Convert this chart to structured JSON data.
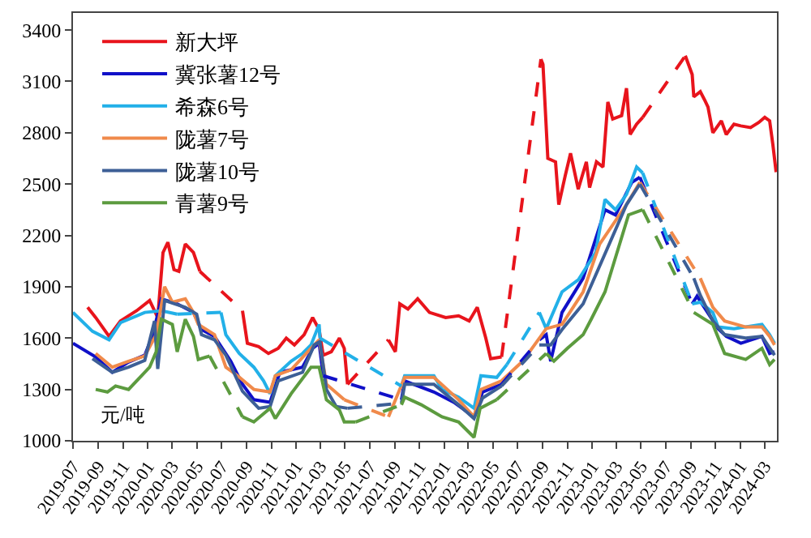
{
  "chart_data": {
    "type": "line",
    "annotations": [
      "元/吨"
    ],
    "xlim": [
      "2019-07-01",
      "2024-04-01"
    ],
    "ylim": [
      1000,
      3500
    ],
    "xticks": [
      "2019-07",
      "2019-09",
      "2019-11",
      "2020-01",
      "2020-03",
      "2020-05",
      "2020-07",
      "2020-09",
      "2020-11",
      "2021-01",
      "2021-03",
      "2021-05",
      "2021-07",
      "2021-09",
      "2021-11",
      "2022-01",
      "2022-03",
      "2022-05",
      "2022-07",
      "2022-09",
      "2022-11",
      "2023-01",
      "2023-03",
      "2023-05",
      "2023-07",
      "2023-09",
      "2023-11",
      "2024-01",
      "2024-03"
    ],
    "yticks": [
      1000,
      1300,
      1600,
      1900,
      2200,
      2500,
      2800,
      3100,
      3400
    ],
    "legend": "top left",
    "series": [
      {
        "name": "新大坪",
        "color": "#e8141c",
        "x": [
          "2019-08-06",
          "2019-08-26",
          "2019-09-28",
          "2019-10-26",
          "2019-12-05",
          "2020-01-06",
          "2020-01-26",
          "2020-02-08",
          "2020-02-20",
          "2020-03-06",
          "2020-03-18",
          "2020-04-03",
          "2020-04-23",
          "2020-05-09",
          "2020-07-01",
          "2020-08-22",
          "2020-09-03",
          "2020-10-01",
          "2020-10-25",
          "2020-11-18",
          "2020-12-08",
          "2020-12-28",
          "2021-01-21",
          "2021-02-11",
          "2021-02-27",
          "2021-03-09",
          "2021-03-29",
          "2021-04-18",
          "2021-04-30",
          "2021-05-08",
          "2021-07-01",
          "2021-08-17",
          "2021-09-03",
          "2021-09-14",
          "2021-10-04",
          "2021-10-28",
          "2021-11-26",
          "2022-01-05",
          "2022-02-06",
          "2022-03-04",
          "2022-03-24",
          "2022-04-14",
          "2022-04-26",
          "2022-05-23",
          "2022-07-01",
          "2022-08-28",
          "2022-09-02",
          "2022-09-14",
          "2022-10-03",
          "2022-10-11",
          "2022-10-27",
          "2022-11-09",
          "2022-11-28",
          "2022-12-18",
          "2022-12-26",
          "2023-01-12",
          "2023-01-28",
          "2023-02-09",
          "2023-02-21",
          "2023-03-15",
          "2023-03-27",
          "2023-04-05",
          "2023-04-21",
          "2023-05-06",
          "2023-07-01",
          "2023-08-19",
          "2023-09-05",
          "2023-09-09",
          "2023-09-25",
          "2023-10-06",
          "2023-10-14",
          "2023-10-26",
          "2023-11-16",
          "2023-11-28",
          "2023-12-17",
          "2024-01-03",
          "2024-01-27",
          "2024-02-16",
          "2024-03-02",
          "2024-03-14",
          "2024-03-22",
          "2024-03-30"
        ],
        "values": [
          1780,
          1720,
          1610,
          1700,
          1760,
          1820,
          1720,
          2100,
          2160,
          2000,
          1990,
          2150,
          2100,
          1990,
          null,
          1760,
          1570,
          1550,
          1510,
          1540,
          1600,
          1560,
          1620,
          1720,
          1650,
          1500,
          1520,
          1600,
          1540,
          1330,
          null,
          1590,
          1520,
          1800,
          1770,
          1830,
          1750,
          1720,
          1730,
          1700,
          1780,
          1600,
          1480,
          1490,
          null,
          3230,
          3200,
          2650,
          2630,
          2380,
          2550,
          2680,
          2470,
          2630,
          2480,
          2630,
          2600,
          2980,
          2880,
          2900,
          3060,
          2790,
          2850,
          2890,
          null,
          3250,
          3140,
          3010,
          3040,
          2990,
          2950,
          2800,
          2870,
          2790,
          2850,
          2840,
          2830,
          2860,
          2890,
          2870,
          2730,
          2570
        ]
      },
      {
        "name": "冀张薯12号",
        "color": "#1010c8",
        "x": [
          "2019-07-01",
          "2019-08-26",
          "2019-10-06",
          "2019-11-15",
          "2019-12-25",
          "2020-01-14",
          "2020-02-04",
          "2020-03-14",
          "2020-04-23",
          "2020-05-13",
          "2020-06-14",
          "2020-07-24",
          "2020-08-22",
          "2020-09-19",
          "2020-10-29",
          "2020-11-22",
          "2021-01-17",
          "2021-02-11",
          "2021-02-27",
          "2021-03-09",
          "2021-06-01",
          "2021-09-18",
          "2021-09-26",
          "2021-12-07",
          "2022-01-25",
          "2022-03-16",
          "2022-04-06",
          "2022-05-23",
          "2022-07-01",
          "2022-08-24",
          "2022-09-10",
          "2022-09-21",
          "2022-10-19",
          "2022-12-10",
          "2023-02-02",
          "2023-02-28",
          "2023-04-09",
          "2023-04-29",
          "2023-07-01",
          "2023-09-05",
          "2023-09-17",
          "2023-11-08",
          "2023-11-28",
          "2024-01-03",
          "2024-02-24",
          "2024-03-14",
          "2024-03-26"
        ],
        "values": [
          1570,
          1490,
          1400,
          1460,
          1500,
          1620,
          1830,
          1800,
          1750,
          1650,
          1610,
          1465,
          1330,
          1240,
          1225,
          1400,
          1430,
          1540,
          1570,
          1380,
          null,
          1240,
          1350,
          1285,
          1225,
          1140,
          1285,
          1330,
          null,
          1590,
          1620,
          1465,
          1750,
          1950,
          2350,
          2320,
          2510,
          2540,
          null,
          1800,
          1845,
          1655,
          1610,
          1570,
          1610,
          1510,
          1520
        ]
      },
      {
        "name": "希森6号",
        "color": "#22b0e8",
        "x": [
          "2019-07-01",
          "2019-08-18",
          "2019-09-28",
          "2019-10-26",
          "2019-12-05",
          "2019-12-25",
          "2020-02-04",
          "2020-03-14",
          "2020-05-01",
          "2020-06-30",
          "2020-07-12",
          "2020-08-14",
          "2020-09-19",
          "2020-10-13",
          "2020-10-29",
          "2020-11-11",
          "2020-12-20",
          "2021-01-17",
          "2021-02-07",
          "2021-02-27",
          "2021-03-01",
          "2021-06-01",
          "2021-09-18",
          "2021-09-26",
          "2021-12-07",
          "2021-12-27",
          "2022-02-06",
          "2022-03-16",
          "2022-04-02",
          "2022-05-11",
          "2022-06-05",
          "2022-07-15",
          "2022-08-24",
          "2022-09-10",
          "2022-10-19",
          "2022-11-28",
          "2023-01-10",
          "2023-02-02",
          "2023-02-28",
          "2023-03-27",
          "2023-04-21",
          "2023-05-06",
          "2023-07-01",
          "2023-09-05",
          "2023-09-25",
          "2023-10-26",
          "2023-11-08",
          "2023-12-17",
          "2024-02-24",
          "2024-03-14",
          "2024-03-26"
        ],
        "values": [
          1750,
          1640,
          1590,
          1690,
          1730,
          1750,
          1760,
          1740,
          null,
          1750,
          1620,
          1510,
          1430,
          1350,
          1275,
          1380,
          1465,
          1510,
          1560,
          1680,
          1600,
          null,
          1320,
          1380,
          1380,
          1300,
          1255,
          1190,
          1380,
          1370,
          1445,
          null,
          1750,
          1655,
          1870,
          1940,
          2100,
          2410,
          2350,
          2440,
          2600,
          2565,
          null,
          1800,
          1810,
          1750,
          1665,
          1655,
          1680,
          1620,
          1570
        ]
      },
      {
        "name": "陇薯7号",
        "color": "#f08a4b",
        "x": [
          "2019-08-26",
          "2019-10-06",
          "2019-11-15",
          "2019-12-25",
          "2020-01-22",
          "2020-02-12",
          "2020-03-02",
          "2020-04-03",
          "2020-04-23",
          "2020-05-05",
          "2020-06-14",
          "2020-07-12",
          "2020-08-10",
          "2020-09-19",
          "2020-10-29",
          "2020-11-11",
          "2020-12-20",
          "2021-02-07",
          "2021-02-27",
          "2021-03-17",
          "2021-04-30",
          "2021-06-15",
          "2021-08-17",
          "2021-09-26",
          "2021-12-07",
          "2022-02-06",
          "2022-03-16",
          "2022-04-02",
          "2022-05-23",
          "2022-07-14",
          "2022-09-10",
          "2022-10-19",
          "2022-12-10",
          "2023-01-20",
          "2023-03-27",
          "2023-04-29",
          "2023-07-01",
          "2023-09-25",
          "2023-10-26",
          "2023-11-24",
          "2024-01-15",
          "2024-02-24",
          "2024-03-14",
          "2024-03-26"
        ],
        "values": [
          1510,
          1430,
          1465,
          1495,
          1620,
          1900,
          1810,
          1830,
          1750,
          1680,
          1620,
          1430,
          1380,
          1300,
          1285,
          1380,
          1415,
          1540,
          1590,
          1330,
          1240,
          null,
          1140,
          1370,
          1370,
          1240,
          1140,
          1300,
          1350,
          1465,
          1655,
          1680,
          1870,
          2150,
          2380,
          2510,
          null,
          1950,
          1780,
          1700,
          1665,
          1665,
          1610,
          1560
        ]
      },
      {
        "name": "陇薯10号",
        "color": "#3d5f96",
        "x": [
          "2019-08-18",
          "2019-10-06",
          "2019-11-15",
          "2019-12-25",
          "2020-01-18",
          "2020-01-26",
          "2020-02-12",
          "2020-04-03",
          "2020-05-01",
          "2020-05-13",
          "2020-06-14",
          "2020-07-12",
          "2020-08-22",
          "2020-10-01",
          "2020-10-29",
          "2020-11-18",
          "2021-01-17",
          "2021-02-15",
          "2021-03-01",
          "2021-03-17",
          "2021-04-10",
          "2021-05-08",
          "2021-07-01",
          "2021-09-18",
          "2021-09-26",
          "2021-12-07",
          "2022-02-06",
          "2022-03-16",
          "2022-04-06",
          "2022-05-23",
          "2022-07-01",
          "2022-08-24",
          "2022-09-21",
          "2022-10-19",
          "2022-12-10",
          "2023-03-27",
          "2023-04-29",
          "2023-07-01",
          "2023-09-09",
          "2023-09-25",
          "2023-10-26",
          "2023-11-24",
          "2024-01-15",
          "2024-02-24",
          "2024-03-26"
        ],
        "values": [
          1480,
          1400,
          1430,
          1470,
          1700,
          1420,
          1820,
          1780,
          1740,
          1620,
          1590,
          1500,
          1290,
          1190,
          1200,
          1350,
          1400,
          1560,
          1580,
          1300,
          1200,
          1190,
          null,
          1220,
          1330,
          1330,
          1210,
          1130,
          1250,
          1320,
          null,
          1560,
          1560,
          1650,
          1800,
          2380,
          2500,
          null,
          1950,
          1850,
          1700,
          1620,
          1600,
          1610,
          1500
        ]
      },
      {
        "name": "青薯9号",
        "color": "#5c9b3f",
        "x": [
          "2019-08-26",
          "2019-09-24",
          "2019-10-14",
          "2019-11-15",
          "2019-12-13",
          "2020-01-06",
          "2020-01-22",
          "2020-02-04",
          "2020-03-02",
          "2020-03-14",
          "2020-04-03",
          "2020-04-23",
          "2020-05-05",
          "2020-06-02",
          "2020-07-10",
          "2020-08-22",
          "2020-09-19",
          "2020-10-29",
          "2020-11-11",
          "2020-12-20",
          "2021-02-07",
          "2021-02-27",
          "2021-03-17",
          "2021-04-18",
          "2021-04-30",
          "2021-05-28",
          "2021-07-15",
          "2021-09-18",
          "2021-09-26",
          "2021-11-06",
          "2021-12-27",
          "2022-02-06",
          "2022-03-16",
          "2022-03-31",
          "2022-05-11",
          "2022-07-15",
          "2022-09-10",
          "2022-09-29",
          "2022-11-01",
          "2022-12-10",
          "2022-12-30",
          "2023-02-02",
          "2023-04-01",
          "2023-05-06",
          "2023-07-01",
          "2023-09-09",
          "2023-10-26",
          "2023-11-24",
          "2024-01-15",
          "2024-02-24",
          "2024-03-14",
          "2024-03-26"
        ],
        "values": [
          1300,
          1285,
          1320,
          1300,
          1370,
          1430,
          1520,
          1710,
          1680,
          1520,
          1710,
          1610,
          1475,
          1495,
          null,
          1140,
          1110,
          1190,
          1130,
          1275,
          1430,
          1430,
          1240,
          1180,
          1110,
          1110,
          null,
          1210,
          1255,
          1210,
          1140,
          1110,
          1020,
          1190,
          1240,
          null,
          1510,
          1465,
          1540,
          1620,
          1710,
          1870,
          2320,
          2350,
          null,
          1750,
          1680,
          1510,
          1475,
          1540,
          1445,
          1475
        ]
      }
    ]
  }
}
